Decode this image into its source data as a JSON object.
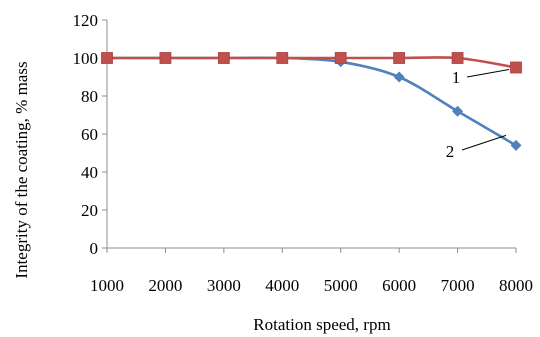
{
  "chart_data": {
    "type": "line",
    "title": "",
    "xlabel": "Rotation speed, rpm",
    "ylabel": "Integrity of the coating, % mass",
    "x": [
      1000,
      2000,
      3000,
      4000,
      5000,
      6000,
      7000,
      8000
    ],
    "x_ticks": [
      "1000",
      "2000",
      "3000",
      "4000",
      "5000",
      "6000",
      "7000",
      "8000"
    ],
    "y_ticks": [
      "0",
      "20",
      "40",
      "60",
      "80",
      "100",
      "120"
    ],
    "ylim": [
      0,
      120
    ],
    "grid": false,
    "legend": "none",
    "series": [
      {
        "name": "1",
        "marker": "square",
        "color": "#C0504D",
        "values": [
          100,
          100,
          100,
          100,
          100,
          100,
          100,
          95
        ]
      },
      {
        "name": "2",
        "marker": "diamond",
        "color": "#4F81BD",
        "values": [
          100,
          100,
          100,
          100,
          98,
          90,
          72,
          54
        ]
      }
    ]
  }
}
